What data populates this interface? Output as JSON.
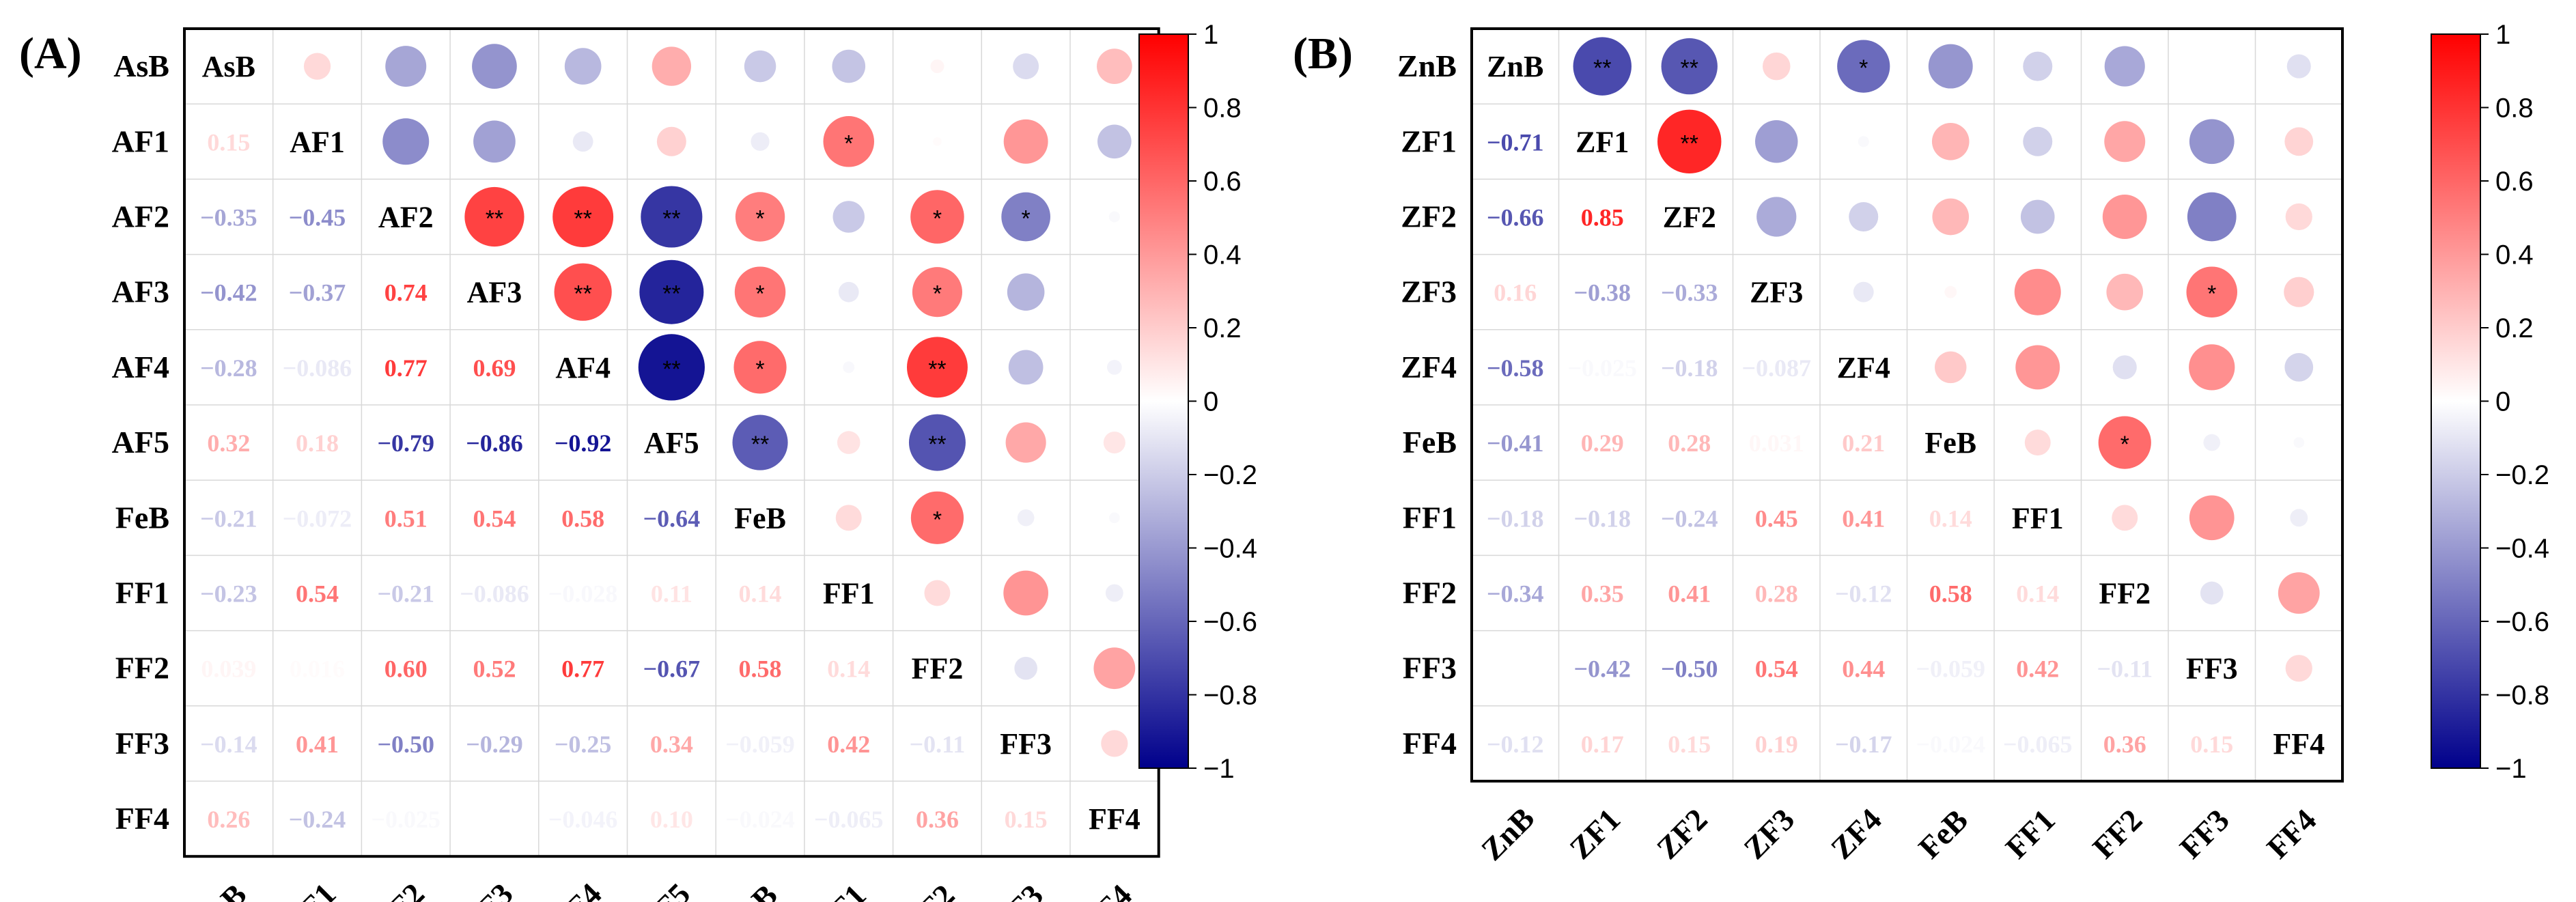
{
  "chart_data": [
    {
      "type": "heatmap",
      "panel_label": "(A)",
      "variables": [
        "AsB",
        "AF1",
        "AF2",
        "AF3",
        "AF4",
        "AF5",
        "FeB",
        "FF1",
        "FF2",
        "FF3",
        "FF4"
      ],
      "lower_triangle_values": [
        [
          null
        ],
        [
          "0.15",
          null
        ],
        [
          "−0.35",
          "−0.45",
          null
        ],
        [
          "−0.42",
          "−0.37",
          "0.74",
          null
        ],
        [
          "−0.28",
          "−0.086",
          "0.77",
          "0.69",
          null
        ],
        [
          "0.32",
          "0.18",
          "−0.79",
          "−0.86",
          "−0.92",
          null
        ],
        [
          "−0.21",
          "−0.072",
          "0.51",
          "0.54",
          "0.58",
          "−0.64",
          null
        ],
        [
          "−0.23",
          "0.54",
          "−0.21",
          "−0.086",
          "−0.028",
          "0.11",
          "0.14",
          null
        ],
        [
          "0.039",
          "0.016",
          "0.60",
          "0.52",
          "0.77",
          "−0.67",
          "0.58",
          "0.14",
          null
        ],
        [
          "−0.14",
          "0.41",
          "−0.50",
          "−0.29",
          "−0.25",
          "0.34",
          "−0.059",
          "0.42",
          "−0.11",
          null
        ],
        [
          "0.26",
          "−0.24",
          "−0.025",
          "",
          "−0.046",
          "0.10",
          "−0.024",
          "−0.065",
          "0.36",
          "0.15",
          null
        ]
      ],
      "upper_circles": [
        {
          "r": 0,
          "c": 1,
          "v": 0.15,
          "sig": ""
        },
        {
          "r": 0,
          "c": 2,
          "v": -0.35,
          "sig": ""
        },
        {
          "r": 0,
          "c": 3,
          "v": -0.42,
          "sig": ""
        },
        {
          "r": 0,
          "c": 4,
          "v": -0.28,
          "sig": ""
        },
        {
          "r": 0,
          "c": 5,
          "v": 0.32,
          "sig": ""
        },
        {
          "r": 0,
          "c": 6,
          "v": -0.21,
          "sig": ""
        },
        {
          "r": 0,
          "c": 7,
          "v": -0.23,
          "sig": ""
        },
        {
          "r": 0,
          "c": 8,
          "v": 0.039,
          "sig": ""
        },
        {
          "r": 0,
          "c": 9,
          "v": -0.14,
          "sig": ""
        },
        {
          "r": 0,
          "c": 10,
          "v": 0.26,
          "sig": ""
        },
        {
          "r": 1,
          "c": 2,
          "v": -0.45,
          "sig": ""
        },
        {
          "r": 1,
          "c": 3,
          "v": -0.37,
          "sig": ""
        },
        {
          "r": 1,
          "c": 4,
          "v": -0.086,
          "sig": ""
        },
        {
          "r": 1,
          "c": 5,
          "v": 0.18,
          "sig": ""
        },
        {
          "r": 1,
          "c": 6,
          "v": -0.072,
          "sig": ""
        },
        {
          "r": 1,
          "c": 7,
          "v": 0.54,
          "sig": "*"
        },
        {
          "r": 1,
          "c": 8,
          "v": 0.016,
          "sig": ""
        },
        {
          "r": 1,
          "c": 9,
          "v": 0.41,
          "sig": ""
        },
        {
          "r": 1,
          "c": 10,
          "v": -0.24,
          "sig": ""
        },
        {
          "r": 2,
          "c": 3,
          "v": 0.74,
          "sig": "**"
        },
        {
          "r": 2,
          "c": 4,
          "v": 0.77,
          "sig": "**"
        },
        {
          "r": 2,
          "c": 5,
          "v": -0.79,
          "sig": "**"
        },
        {
          "r": 2,
          "c": 6,
          "v": 0.51,
          "sig": "*"
        },
        {
          "r": 2,
          "c": 7,
          "v": -0.21,
          "sig": ""
        },
        {
          "r": 2,
          "c": 8,
          "v": 0.6,
          "sig": "*"
        },
        {
          "r": 2,
          "c": 9,
          "v": -0.5,
          "sig": "*"
        },
        {
          "r": 2,
          "c": 10,
          "v": -0.025,
          "sig": ""
        },
        {
          "r": 3,
          "c": 4,
          "v": 0.69,
          "sig": "**"
        },
        {
          "r": 3,
          "c": 5,
          "v": -0.86,
          "sig": "**"
        },
        {
          "r": 3,
          "c": 6,
          "v": 0.54,
          "sig": "*"
        },
        {
          "r": 3,
          "c": 7,
          "v": -0.086,
          "sig": ""
        },
        {
          "r": 3,
          "c": 8,
          "v": 0.52,
          "sig": "*"
        },
        {
          "r": 3,
          "c": 9,
          "v": -0.29,
          "sig": ""
        },
        {
          "r": 4,
          "c": 5,
          "v": -0.92,
          "sig": "**"
        },
        {
          "r": 4,
          "c": 6,
          "v": 0.58,
          "sig": "*"
        },
        {
          "r": 4,
          "c": 7,
          "v": -0.028,
          "sig": ""
        },
        {
          "r": 4,
          "c": 8,
          "v": 0.77,
          "sig": "**"
        },
        {
          "r": 4,
          "c": 9,
          "v": -0.25,
          "sig": ""
        },
        {
          "r": 4,
          "c": 10,
          "v": -0.046,
          "sig": ""
        },
        {
          "r": 5,
          "c": 6,
          "v": -0.64,
          "sig": "**"
        },
        {
          "r": 5,
          "c": 7,
          "v": 0.11,
          "sig": ""
        },
        {
          "r": 5,
          "c": 8,
          "v": -0.67,
          "sig": "**"
        },
        {
          "r": 5,
          "c": 9,
          "v": 0.34,
          "sig": ""
        },
        {
          "r": 5,
          "c": 10,
          "v": 0.1,
          "sig": ""
        },
        {
          "r": 6,
          "c": 7,
          "v": 0.14,
          "sig": ""
        },
        {
          "r": 6,
          "c": 8,
          "v": 0.58,
          "sig": "*"
        },
        {
          "r": 6,
          "c": 9,
          "v": -0.059,
          "sig": ""
        },
        {
          "r": 6,
          "c": 10,
          "v": -0.024,
          "sig": ""
        },
        {
          "r": 7,
          "c": 8,
          "v": 0.14,
          "sig": ""
        },
        {
          "r": 7,
          "c": 9,
          "v": 0.42,
          "sig": ""
        },
        {
          "r": 7,
          "c": 10,
          "v": -0.065,
          "sig": ""
        },
        {
          "r": 8,
          "c": 9,
          "v": -0.11,
          "sig": ""
        },
        {
          "r": 8,
          "c": 10,
          "v": 0.36,
          "sig": ""
        },
        {
          "r": 9,
          "c": 10,
          "v": 0.15,
          "sig": ""
        }
      ],
      "colorbar": {
        "min": -1,
        "max": 1,
        "ticks": [
          "1",
          "0.8",
          "0.6",
          "0.4",
          "0.2",
          "0",
          "−0.2",
          "−0.4",
          "−0.6",
          "−0.8",
          "−1"
        ]
      }
    },
    {
      "type": "heatmap",
      "panel_label": "(B)",
      "variables": [
        "ZnB",
        "ZF1",
        "ZF2",
        "ZF3",
        "ZF4",
        "FeB",
        "FF1",
        "FF2",
        "FF3",
        "FF4"
      ],
      "lower_triangle_values": [
        [
          null
        ],
        [
          "−0.71",
          null
        ],
        [
          "−0.66",
          "0.85",
          null
        ],
        [
          "0.16",
          "−0.38",
          "−0.33",
          null
        ],
        [
          "−0.58",
          "−0.025",
          "−0.18",
          "−0.087",
          null
        ],
        [
          "−0.41",
          "0.29",
          "0.28",
          "0.031",
          "0.21",
          null
        ],
        [
          "−0.18",
          "−0.18",
          "−0.24",
          "0.45",
          "0.41",
          "0.14",
          null
        ],
        [
          "−0.34",
          "0.35",
          "0.41",
          "0.28",
          "−0.12",
          "0.58",
          "0.14",
          null
        ],
        [
          "",
          "−0.42",
          "−0.50",
          "0.54",
          "0.44",
          "−0.059",
          "0.42",
          "−0.11",
          null
        ],
        [
          "−0.12",
          "0.17",
          "0.15",
          "0.19",
          "−0.17",
          "−0.024",
          "−0.065",
          "0.36",
          "0.15",
          null
        ]
      ],
      "upper_circles": [
        {
          "r": 0,
          "c": 1,
          "v": -0.71,
          "sig": "**"
        },
        {
          "r": 0,
          "c": 2,
          "v": -0.66,
          "sig": "**"
        },
        {
          "r": 0,
          "c": 3,
          "v": 0.16,
          "sig": ""
        },
        {
          "r": 0,
          "c": 4,
          "v": -0.58,
          "sig": "*"
        },
        {
          "r": 0,
          "c": 5,
          "v": -0.41,
          "sig": ""
        },
        {
          "r": 0,
          "c": 6,
          "v": -0.18,
          "sig": ""
        },
        {
          "r": 0,
          "c": 7,
          "v": -0.34,
          "sig": ""
        },
        {
          "r": 0,
          "c": 9,
          "v": -0.12,
          "sig": ""
        },
        {
          "r": 1,
          "c": 2,
          "v": 0.85,
          "sig": "**"
        },
        {
          "r": 1,
          "c": 3,
          "v": -0.38,
          "sig": ""
        },
        {
          "r": 1,
          "c": 4,
          "v": -0.025,
          "sig": ""
        },
        {
          "r": 1,
          "c": 5,
          "v": 0.29,
          "sig": ""
        },
        {
          "r": 1,
          "c": 6,
          "v": -0.18,
          "sig": ""
        },
        {
          "r": 1,
          "c": 7,
          "v": 0.35,
          "sig": ""
        },
        {
          "r": 1,
          "c": 8,
          "v": -0.42,
          "sig": ""
        },
        {
          "r": 1,
          "c": 9,
          "v": 0.17,
          "sig": ""
        },
        {
          "r": 2,
          "c": 3,
          "v": -0.33,
          "sig": ""
        },
        {
          "r": 2,
          "c": 4,
          "v": -0.18,
          "sig": ""
        },
        {
          "r": 2,
          "c": 5,
          "v": 0.28,
          "sig": ""
        },
        {
          "r": 2,
          "c": 6,
          "v": -0.24,
          "sig": ""
        },
        {
          "r": 2,
          "c": 7,
          "v": 0.41,
          "sig": ""
        },
        {
          "r": 2,
          "c": 8,
          "v": -0.5,
          "sig": ""
        },
        {
          "r": 2,
          "c": 9,
          "v": 0.15,
          "sig": ""
        },
        {
          "r": 3,
          "c": 4,
          "v": -0.087,
          "sig": ""
        },
        {
          "r": 3,
          "c": 5,
          "v": 0.031,
          "sig": ""
        },
        {
          "r": 3,
          "c": 6,
          "v": 0.45,
          "sig": ""
        },
        {
          "r": 3,
          "c": 7,
          "v": 0.28,
          "sig": ""
        },
        {
          "r": 3,
          "c": 8,
          "v": 0.54,
          "sig": "*"
        },
        {
          "r": 3,
          "c": 9,
          "v": 0.19,
          "sig": ""
        },
        {
          "r": 4,
          "c": 5,
          "v": 0.21,
          "sig": ""
        },
        {
          "r": 4,
          "c": 6,
          "v": 0.41,
          "sig": ""
        },
        {
          "r": 4,
          "c": 7,
          "v": -0.12,
          "sig": ""
        },
        {
          "r": 4,
          "c": 8,
          "v": 0.44,
          "sig": ""
        },
        {
          "r": 4,
          "c": 9,
          "v": -0.17,
          "sig": ""
        },
        {
          "r": 5,
          "c": 6,
          "v": 0.14,
          "sig": ""
        },
        {
          "r": 5,
          "c": 7,
          "v": 0.58,
          "sig": "*"
        },
        {
          "r": 5,
          "c": 8,
          "v": -0.059,
          "sig": ""
        },
        {
          "r": 5,
          "c": 9,
          "v": -0.024,
          "sig": ""
        },
        {
          "r": 6,
          "c": 7,
          "v": 0.14,
          "sig": ""
        },
        {
          "r": 6,
          "c": 8,
          "v": 0.42,
          "sig": ""
        },
        {
          "r": 6,
          "c": 9,
          "v": -0.065,
          "sig": ""
        },
        {
          "r": 7,
          "c": 8,
          "v": -0.11,
          "sig": ""
        },
        {
          "r": 7,
          "c": 9,
          "v": 0.36,
          "sig": ""
        },
        {
          "r": 8,
          "c": 9,
          "v": 0.15,
          "sig": ""
        }
      ],
      "colorbar": {
        "min": -1,
        "max": 1,
        "ticks": [
          "1",
          "0.8",
          "0.6",
          "0.4",
          "0.2",
          "0",
          "−0.2",
          "−0.4",
          "−0.6",
          "−0.8",
          "−1"
        ]
      }
    }
  ]
}
